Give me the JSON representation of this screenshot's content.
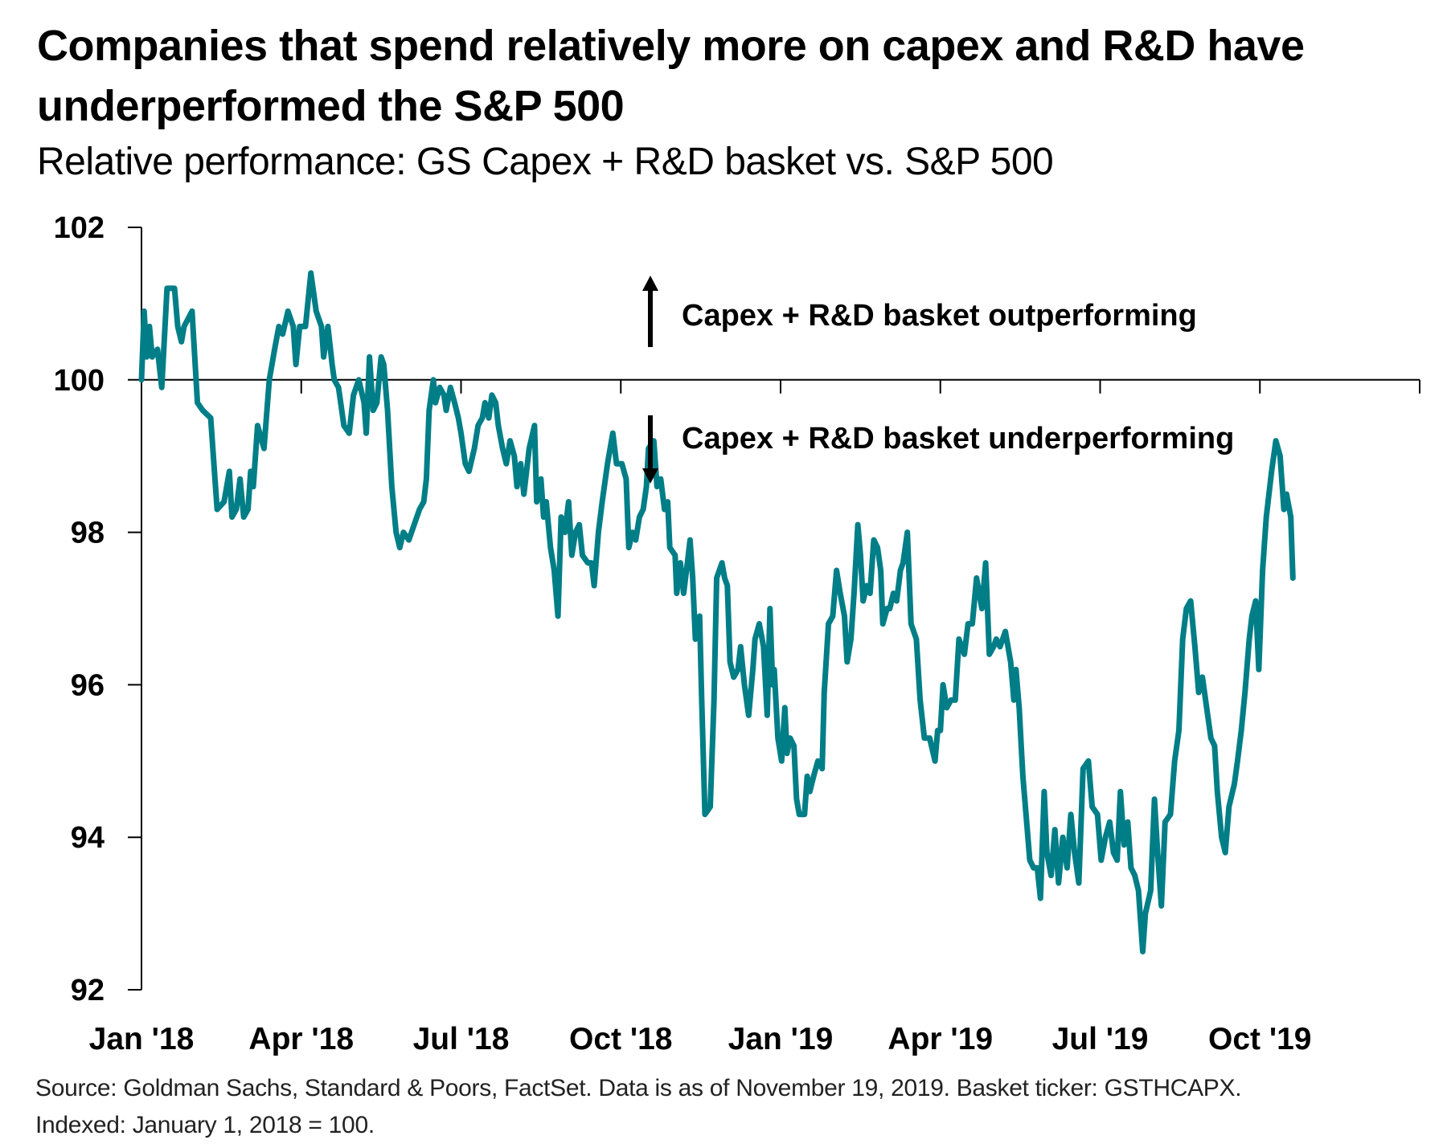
{
  "title": "Companies that spend relatively more on capex and R&D have underperformed the S&P 500",
  "subtitle": "Relative performance: GS Capex + R&D basket vs. S&P 500",
  "source_lines": [
    "Source: Goldman Sachs, Standard & Poors, FactSet. Data is as of November 19, 2019. Basket ticker: GSTHCAPX.",
    "Indexed: January 1, 2018 = 100."
  ],
  "colors": {
    "line": "#007E87",
    "axis": "#000000",
    "text": "#000000"
  },
  "chart_data": {
    "type": "line",
    "title": "Companies that spend relatively more on capex and R&D have underperformed the S&P 500",
    "subtitle": "Relative performance: GS Capex + R&D basket vs. S&P 500",
    "xlabel": "",
    "ylabel": "",
    "ylim": [
      92,
      102
    ],
    "yticks": [
      92,
      94,
      96,
      98,
      100,
      102
    ],
    "ytick_labels": [
      "92",
      "94",
      "96",
      "98",
      "100",
      "102"
    ],
    "xlim_months_since_jan_2018": [
      0,
      24
    ],
    "xticks_months": [
      0,
      3,
      6,
      9,
      12,
      15,
      18,
      21,
      24
    ],
    "xtick_labels": [
      "Jan '18",
      "Apr '18",
      "Jul '18",
      "Oct '18",
      "Jan '19",
      "Apr '19",
      "Jul '19",
      "Oct '19",
      ""
    ],
    "baseline": 100,
    "grid": false,
    "legend": "none",
    "annotations": [
      {
        "text": "Capex + R&D basket outperforming",
        "direction": "up"
      },
      {
        "text": "Capex + R&D basket underperforming",
        "direction": "down"
      }
    ],
    "series": [
      {
        "name": "GS Capex + R&D basket vs. S&P 500",
        "x_unit": "months since Jan 1, 2018",
        "points": [
          [
            0.0,
            100.0
          ],
          [
            0.05,
            100.9
          ],
          [
            0.1,
            100.3
          ],
          [
            0.15,
            100.7
          ],
          [
            0.2,
            100.3
          ],
          [
            0.3,
            100.4
          ],
          [
            0.38,
            99.9
          ],
          [
            0.48,
            101.2
          ],
          [
            0.62,
            101.2
          ],
          [
            0.68,
            100.7
          ],
          [
            0.75,
            100.5
          ],
          [
            0.8,
            100.7
          ],
          [
            0.95,
            100.9
          ],
          [
            1.05,
            99.7
          ],
          [
            1.15,
            99.6
          ],
          [
            1.3,
            99.5
          ],
          [
            1.35,
            99.0
          ],
          [
            1.42,
            98.3
          ],
          [
            1.55,
            98.4
          ],
          [
            1.65,
            98.8
          ],
          [
            1.7,
            98.2
          ],
          [
            1.78,
            98.3
          ],
          [
            1.85,
            98.7
          ],
          [
            1.92,
            98.2
          ],
          [
            2.0,
            98.3
          ],
          [
            2.05,
            98.8
          ],
          [
            2.1,
            98.6
          ],
          [
            2.18,
            99.4
          ],
          [
            2.3,
            99.1
          ],
          [
            2.4,
            100.0
          ],
          [
            2.5,
            100.4
          ],
          [
            2.58,
            100.7
          ],
          [
            2.65,
            100.6
          ],
          [
            2.75,
            100.9
          ],
          [
            2.85,
            100.7
          ],
          [
            2.9,
            100.2
          ],
          [
            2.97,
            100.7
          ],
          [
            3.08,
            100.7
          ],
          [
            3.18,
            101.4
          ],
          [
            3.28,
            100.9
          ],
          [
            3.38,
            100.7
          ],
          [
            3.42,
            100.3
          ],
          [
            3.5,
            100.7
          ],
          [
            3.58,
            100.2
          ],
          [
            3.62,
            100.0
          ],
          [
            3.7,
            99.9
          ],
          [
            3.8,
            99.4
          ],
          [
            3.9,
            99.3
          ],
          [
            3.98,
            99.8
          ],
          [
            4.08,
            100.0
          ],
          [
            4.18,
            99.7
          ],
          [
            4.22,
            99.3
          ],
          [
            4.28,
            100.3
          ],
          [
            4.35,
            99.6
          ],
          [
            4.42,
            99.7
          ],
          [
            4.5,
            100.3
          ],
          [
            4.55,
            100.2
          ],
          [
            4.62,
            99.6
          ],
          [
            4.7,
            98.6
          ],
          [
            4.78,
            98.0
          ],
          [
            4.85,
            97.8
          ],
          [
            4.92,
            98.0
          ],
          [
            5.02,
            97.9
          ],
          [
            5.12,
            98.1
          ],
          [
            5.22,
            98.3
          ],
          [
            5.3,
            98.4
          ],
          [
            5.35,
            98.7
          ],
          [
            5.4,
            99.6
          ],
          [
            5.48,
            100.0
          ],
          [
            5.52,
            99.7
          ],
          [
            5.6,
            99.9
          ],
          [
            5.68,
            99.8
          ],
          [
            5.72,
            99.6
          ],
          [
            5.8,
            99.9
          ],
          [
            5.88,
            99.7
          ],
          [
            5.95,
            99.5
          ],
          [
            6.0,
            99.3
          ],
          [
            6.08,
            98.9
          ],
          [
            6.15,
            98.8
          ],
          [
            6.25,
            99.1
          ],
          [
            6.32,
            99.4
          ],
          [
            6.4,
            99.5
          ],
          [
            6.45,
            99.7
          ],
          [
            6.52,
            99.5
          ],
          [
            6.58,
            99.8
          ],
          [
            6.65,
            99.7
          ],
          [
            6.7,
            99.4
          ],
          [
            6.78,
            99.1
          ],
          [
            6.85,
            98.9
          ],
          [
            6.92,
            99.2
          ],
          [
            7.0,
            99.0
          ],
          [
            7.05,
            98.6
          ],
          [
            7.12,
            98.9
          ],
          [
            7.18,
            98.5
          ],
          [
            7.28,
            99.1
          ],
          [
            7.38,
            99.4
          ],
          [
            7.42,
            98.4
          ],
          [
            7.5,
            98.7
          ],
          [
            7.55,
            98.2
          ],
          [
            7.6,
            98.4
          ],
          [
            7.68,
            97.8
          ],
          [
            7.75,
            97.5
          ],
          [
            7.82,
            96.9
          ],
          [
            7.88,
            98.2
          ],
          [
            7.95,
            98.0
          ],
          [
            8.02,
            98.4
          ],
          [
            8.08,
            97.7
          ],
          [
            8.15,
            98.0
          ],
          [
            8.22,
            98.1
          ],
          [
            8.28,
            97.7
          ],
          [
            8.38,
            97.6
          ],
          [
            8.45,
            97.6
          ],
          [
            8.5,
            97.3
          ],
          [
            8.58,
            98.0
          ],
          [
            8.65,
            98.4
          ],
          [
            8.75,
            98.9
          ],
          [
            8.85,
            99.3
          ],
          [
            8.92,
            98.9
          ],
          [
            9.02,
            98.9
          ],
          [
            9.1,
            98.7
          ],
          [
            9.15,
            97.8
          ],
          [
            9.22,
            98.0
          ],
          [
            9.28,
            97.9
          ],
          [
            9.35,
            98.2
          ],
          [
            9.42,
            98.3
          ],
          [
            9.48,
            98.6
          ],
          [
            9.52,
            99.1
          ],
          [
            9.62,
            99.2
          ],
          [
            9.68,
            98.6
          ],
          [
            9.75,
            98.7
          ],
          [
            9.82,
            98.3
          ],
          [
            9.88,
            98.4
          ],
          [
            9.92,
            97.8
          ],
          [
            10.02,
            97.7
          ],
          [
            10.05,
            97.2
          ],
          [
            10.12,
            97.6
          ],
          [
            10.18,
            97.2
          ],
          [
            10.25,
            97.6
          ],
          [
            10.3,
            97.9
          ],
          [
            10.35,
            97.4
          ],
          [
            10.4,
            96.6
          ],
          [
            10.48,
            96.9
          ],
          [
            10.52,
            95.8
          ],
          [
            10.58,
            94.3
          ],
          [
            10.68,
            94.4
          ],
          [
            10.75,
            95.8
          ],
          [
            10.8,
            97.4
          ],
          [
            10.9,
            97.6
          ],
          [
            10.95,
            97.4
          ],
          [
            11.0,
            97.3
          ],
          [
            11.05,
            96.3
          ],
          [
            11.12,
            96.1
          ],
          [
            11.2,
            96.2
          ],
          [
            11.25,
            96.5
          ],
          [
            11.32,
            96.0
          ],
          [
            11.4,
            95.6
          ],
          [
            11.48,
            96.2
          ],
          [
            11.52,
            96.6
          ],
          [
            11.6,
            96.8
          ],
          [
            11.68,
            96.5
          ],
          [
            11.75,
            95.6
          ],
          [
            11.8,
            97.0
          ],
          [
            11.85,
            96.0
          ],
          [
            11.88,
            96.2
          ],
          [
            11.95,
            95.3
          ],
          [
            12.02,
            95.0
          ],
          [
            12.08,
            95.7
          ],
          [
            12.12,
            95.1
          ],
          [
            12.18,
            95.3
          ],
          [
            12.25,
            95.2
          ],
          [
            12.3,
            94.5
          ],
          [
            12.35,
            94.3
          ],
          [
            12.45,
            94.3
          ],
          [
            12.5,
            94.8
          ],
          [
            12.55,
            94.6
          ],
          [
            12.62,
            94.8
          ],
          [
            12.7,
            95.0
          ],
          [
            12.78,
            94.9
          ],
          [
            12.82,
            95.9
          ],
          [
            12.9,
            96.8
          ],
          [
            12.98,
            96.9
          ],
          [
            13.05,
            97.5
          ],
          [
            13.12,
            97.2
          ],
          [
            13.2,
            96.9
          ],
          [
            13.25,
            96.3
          ],
          [
            13.32,
            96.6
          ],
          [
            13.38,
            97.2
          ],
          [
            13.45,
            98.1
          ],
          [
            13.5,
            97.7
          ],
          [
            13.55,
            97.1
          ],
          [
            13.62,
            97.3
          ],
          [
            13.68,
            97.2
          ],
          [
            13.75,
            97.9
          ],
          [
            13.82,
            97.8
          ],
          [
            13.88,
            97.5
          ],
          [
            13.92,
            96.8
          ],
          [
            14.0,
            97.0
          ],
          [
            14.05,
            97.0
          ],
          [
            14.12,
            97.2
          ],
          [
            14.18,
            97.1
          ],
          [
            14.25,
            97.5
          ],
          [
            14.3,
            97.6
          ],
          [
            14.38,
            98.0
          ],
          [
            14.45,
            96.8
          ],
          [
            14.55,
            96.6
          ],
          [
            14.62,
            95.8
          ],
          [
            14.7,
            95.3
          ],
          [
            14.8,
            95.3
          ],
          [
            14.9,
            95.0
          ],
          [
            14.95,
            95.4
          ],
          [
            15.0,
            95.4
          ],
          [
            15.05,
            96.0
          ],
          [
            15.12,
            95.7
          ],
          [
            15.2,
            95.8
          ],
          [
            15.28,
            95.8
          ],
          [
            15.35,
            96.6
          ],
          [
            15.45,
            96.4
          ],
          [
            15.52,
            96.8
          ],
          [
            15.6,
            96.8
          ],
          [
            15.68,
            97.4
          ],
          [
            15.78,
            97.0
          ],
          [
            15.85,
            97.6
          ],
          [
            15.92,
            96.4
          ],
          [
            16.0,
            96.5
          ],
          [
            16.05,
            96.6
          ],
          [
            16.12,
            96.5
          ],
          [
            16.22,
            96.7
          ],
          [
            16.32,
            96.3
          ],
          [
            16.38,
            95.8
          ],
          [
            16.42,
            96.2
          ],
          [
            16.48,
            95.7
          ],
          [
            16.55,
            94.8
          ],
          [
            16.62,
            94.2
          ],
          [
            16.68,
            93.7
          ],
          [
            16.75,
            93.6
          ],
          [
            16.82,
            93.6
          ],
          [
            16.88,
            93.2
          ],
          [
            16.95,
            94.6
          ],
          [
            17.0,
            93.8
          ],
          [
            17.08,
            93.5
          ],
          [
            17.15,
            94.1
          ],
          [
            17.22,
            93.4
          ],
          [
            17.3,
            94.0
          ],
          [
            17.38,
            93.6
          ],
          [
            17.45,
            94.3
          ],
          [
            17.52,
            93.8
          ],
          [
            17.6,
            93.4
          ],
          [
            17.68,
            94.9
          ],
          [
            17.78,
            95.0
          ],
          [
            17.85,
            94.4
          ],
          [
            17.95,
            94.3
          ],
          [
            18.02,
            93.7
          ],
          [
            18.1,
            94.0
          ],
          [
            18.18,
            94.2
          ],
          [
            18.25,
            93.8
          ],
          [
            18.32,
            93.7
          ],
          [
            18.38,
            94.6
          ],
          [
            18.45,
            93.9
          ],
          [
            18.52,
            94.2
          ],
          [
            18.58,
            93.6
          ],
          [
            18.65,
            93.5
          ],
          [
            18.72,
            93.3
          ],
          [
            18.8,
            92.5
          ],
          [
            18.85,
            93.0
          ],
          [
            18.95,
            93.3
          ],
          [
            19.02,
            94.5
          ],
          [
            19.08,
            93.8
          ],
          [
            19.15,
            93.1
          ],
          [
            19.22,
            94.2
          ],
          [
            19.32,
            94.3
          ],
          [
            19.4,
            95.0
          ],
          [
            19.48,
            95.4
          ],
          [
            19.55,
            96.6
          ],
          [
            19.62,
            97.0
          ],
          [
            19.7,
            97.1
          ],
          [
            19.78,
            96.5
          ],
          [
            19.85,
            95.9
          ],
          [
            19.92,
            96.1
          ],
          [
            20.0,
            95.7
          ],
          [
            20.08,
            95.3
          ],
          [
            20.15,
            95.2
          ],
          [
            20.2,
            94.6
          ],
          [
            20.28,
            94.0
          ],
          [
            20.35,
            93.8
          ],
          [
            20.42,
            94.4
          ],
          [
            20.52,
            94.7
          ],
          [
            20.58,
            95.0
          ],
          [
            20.65,
            95.4
          ],
          [
            20.72,
            95.9
          ],
          [
            20.8,
            96.6
          ],
          [
            20.85,
            96.9
          ],
          [
            20.92,
            97.1
          ],
          [
            20.98,
            96.2
          ],
          [
            21.05,
            97.5
          ],
          [
            21.12,
            98.2
          ],
          [
            21.22,
            98.8
          ],
          [
            21.3,
            99.2
          ],
          [
            21.38,
            99.0
          ],
          [
            21.45,
            98.3
          ],
          [
            21.5,
            98.5
          ],
          [
            21.58,
            98.2
          ],
          [
            21.62,
            97.4
          ]
        ]
      }
    ]
  }
}
